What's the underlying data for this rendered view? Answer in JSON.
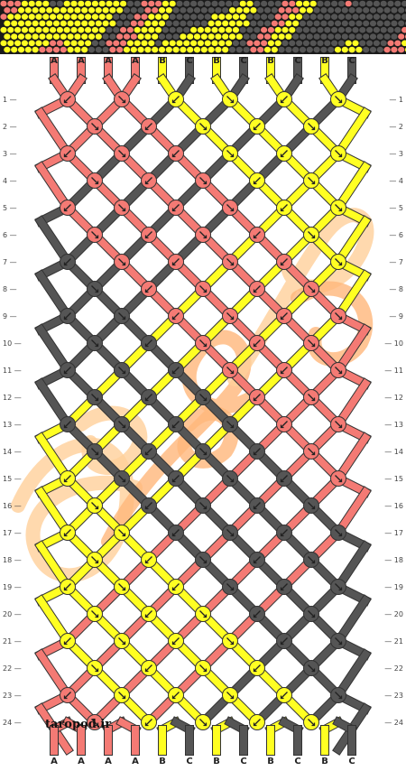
{
  "colors": {
    "A": "#f47a74",
    "B": "#ffff22",
    "C": "#555555"
  },
  "strands_top": [
    "A",
    "A",
    "A",
    "A",
    "B",
    "C",
    "B",
    "C",
    "B",
    "C",
    "B",
    "C"
  ],
  "strands_bottom": [
    "A",
    "A",
    "A",
    "A",
    "B",
    "C",
    "B",
    "C",
    "B",
    "C",
    "B",
    "C"
  ],
  "row_numbers": [
    "1",
    "2",
    "3",
    "4",
    "5",
    "6",
    "7",
    "8",
    "9",
    "10",
    "11",
    "12",
    "13",
    "14",
    "15",
    "16",
    "17",
    "18",
    "19",
    "20",
    "21",
    "22",
    "23",
    "24"
  ],
  "credit": "taropod.ir",
  "watermark_colors": [
    "#ffcf9a",
    "#ffb77a"
  ]
}
